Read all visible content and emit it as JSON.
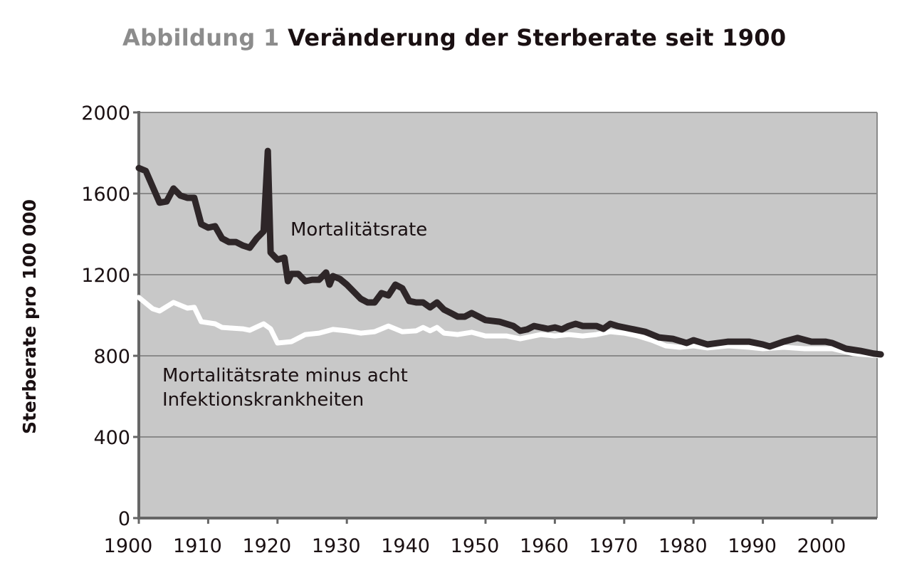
{
  "title": {
    "lead": "Abbildung 1",
    "text": "Veränderung der Sterberate seit 1900"
  },
  "chart_data": {
    "type": "line",
    "title": "Veränderung der Sterberate seit 1900",
    "xlabel": "",
    "ylabel": "Sterberate pro 100 000",
    "xlim": [
      1900,
      2007
    ],
    "ylim": [
      0,
      2000
    ],
    "xticks": [
      1900,
      1910,
      1920,
      1930,
      1940,
      1950,
      1960,
      1970,
      1980,
      1990,
      2000
    ],
    "yticks": [
      0,
      400,
      800,
      1200,
      1600,
      2000
    ],
    "grid": "horizontal",
    "background": "#c8c8c8",
    "series": [
      {
        "name": "Mortalitätsrate",
        "color": "#2e2628",
        "x": [
          1900,
          1901,
          1903,
          1904,
          1905,
          1906,
          1907,
          1908,
          1909,
          1910,
          1911,
          1912,
          1913,
          1914,
          1915,
          1916,
          1917,
          1918,
          1918.6,
          1919,
          1920,
          1921,
          1921.5,
          1922,
          1923,
          1924,
          1925,
          1926,
          1927,
          1927.5,
          1928,
          1929,
          1930,
          1931,
          1932,
          1933,
          1934,
          1935,
          1936,
          1937,
          1938,
          1939,
          1940,
          1941,
          1942,
          1943,
          1944,
          1945,
          1946,
          1947,
          1948,
          1950,
          1952,
          1954,
          1955,
          1956,
          1957,
          1958,
          1959,
          1960,
          1961,
          1962,
          1963,
          1964,
          1966,
          1967,
          1968,
          1969,
          1971,
          1973,
          1975,
          1977,
          1979,
          1980,
          1982,
          1985,
          1988,
          1990,
          1991,
          1993,
          1995,
          1997,
          1999,
          2000,
          2002,
          2004,
          2006,
          2007
        ],
        "y": [
          1726,
          1712,
          1555,
          1561,
          1625,
          1590,
          1579,
          1579,
          1449,
          1432,
          1439,
          1379,
          1361,
          1361,
          1344,
          1333,
          1379,
          1414,
          1810,
          1309,
          1274,
          1284,
          1168,
          1204,
          1204,
          1168,
          1175,
          1175,
          1211,
          1151,
          1193,
          1179,
          1151,
          1116,
          1081,
          1063,
          1063,
          1109,
          1098,
          1151,
          1133,
          1070,
          1063,
          1063,
          1039,
          1063,
          1028,
          1011,
          993,
          993,
          1011,
          976,
          968,
          947,
          923,
          930,
          947,
          940,
          933,
          940,
          930,
          947,
          958,
          947,
          947,
          933,
          958,
          947,
          933,
          919,
          891,
          884,
          863,
          877,
          856,
          870,
          870,
          856,
          846,
          870,
          888,
          870,
          870,
          863,
          835,
          825,
          811,
          807
        ]
      },
      {
        "name": "Mortalitätsrate minus acht Infektionskrankheiten",
        "name_lines": [
          "Mortalitätsrate minus acht",
          "Infektionskrankheiten"
        ],
        "color": "#ffffff",
        "x": [
          1900,
          1902,
          1903,
          1905,
          1907,
          1908,
          1909,
          1911,
          1912,
          1915,
          1916,
          1918,
          1919,
          1920,
          1922,
          1924,
          1926,
          1928,
          1930,
          1932,
          1934,
          1936,
          1938,
          1940,
          1941,
          1942,
          1943,
          1944,
          1946,
          1948,
          1950,
          1953,
          1955,
          1958,
          1960,
          1962,
          1964,
          1966,
          1968,
          1970,
          1972,
          1974,
          1976,
          1978,
          1980,
          1982,
          1985,
          1988,
          1990,
          1993,
          1996,
          2000,
          2003,
          2007
        ],
        "y": [
          1088,
          1032,
          1021,
          1063,
          1035,
          1039,
          968,
          958,
          940,
          933,
          926,
          958,
          933,
          863,
          870,
          905,
          912,
          930,
          923,
          912,
          919,
          947,
          919,
          923,
          940,
          923,
          940,
          912,
          905,
          916,
          898,
          898,
          884,
          905,
          898,
          905,
          898,
          905,
          919,
          912,
          898,
          877,
          849,
          842,
          849,
          839,
          849,
          842,
          835,
          842,
          835,
          835,
          811,
          800
        ]
      }
    ]
  }
}
